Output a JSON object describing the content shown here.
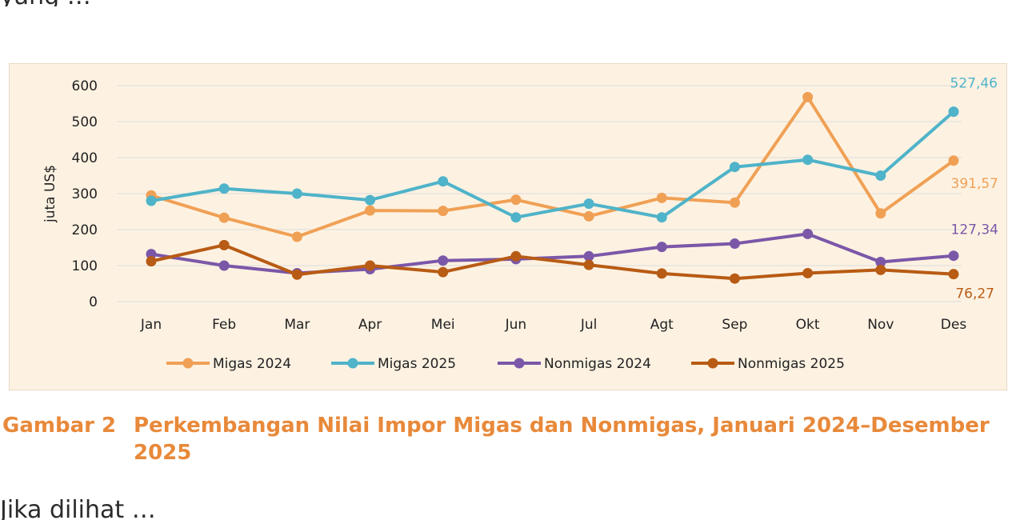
{
  "page": {
    "top_fragment": "yang …",
    "bottom_fragment": "Jika dilihat …"
  },
  "caption": {
    "number": "Gambar 2",
    "text": "Perkembangan Nilai Impor Migas dan Nonmigas, Januari 2024–Desember 2025"
  },
  "chart_data": {
    "type": "line",
    "title": "",
    "xlabel": "",
    "ylabel": "juta US$",
    "ylim": [
      0,
      600
    ],
    "yticks": [
      0,
      100,
      200,
      300,
      400,
      500,
      600
    ],
    "grid": true,
    "legend_position": "bottom",
    "categories": [
      "Jan",
      "Feb",
      "Mar",
      "Apr",
      "Mei",
      "Jun",
      "Jul",
      "Agt",
      "Sep",
      "Okt",
      "Nov",
      "Des"
    ],
    "series": [
      {
        "name": "Migas 2024",
        "color": "#f0a055",
        "values": [
          295,
          233,
          180,
          253,
          252,
          283,
          237,
          288,
          275,
          568,
          245,
          391.57
        ],
        "end_label": "391,57"
      },
      {
        "name": "Migas 2025",
        "color": "#4fb3c9",
        "values": [
          280,
          314,
          300,
          282,
          334,
          234,
          272,
          234,
          374,
          394,
          350,
          527.46
        ],
        "end_label": "527,46"
      },
      {
        "name": "Nonmigas 2024",
        "color": "#7b57a8",
        "values": [
          132,
          100,
          79,
          90,
          114,
          118,
          126,
          152,
          161,
          188,
          110,
          127.34
        ],
        "end_label": "127,34"
      },
      {
        "name": "Nonmigas 2025",
        "color": "#b85b14",
        "values": [
          112,
          157,
          75,
          100,
          82,
          126,
          102,
          78,
          64,
          79,
          88,
          76.27
        ],
        "end_label": "76,27"
      }
    ]
  }
}
